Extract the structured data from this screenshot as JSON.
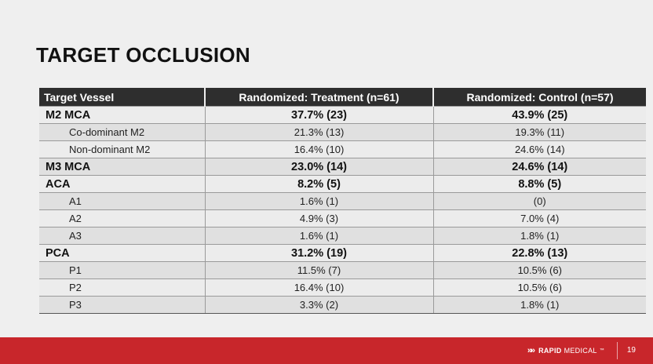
{
  "title": "TARGET OCCLUSION",
  "table": {
    "headers": [
      "Target Vessel",
      "Randomized: Treatment (n=61)",
      "Randomized: Control (n=57)"
    ],
    "rows": [
      {
        "level": "major",
        "vessel": "M2 MCA",
        "treatment": "37.7% (23)",
        "control": "43.9% (25)"
      },
      {
        "level": "sub",
        "vessel": "Co-dominant M2",
        "treatment": "21.3% (13)",
        "control": "19.3% (11)"
      },
      {
        "level": "sub",
        "vessel": "Non-dominant M2",
        "treatment": "16.4% (10)",
        "control": "24.6% (14)"
      },
      {
        "level": "major",
        "vessel": "M3 MCA",
        "treatment": "23.0% (14)",
        "control": "24.6% (14)"
      },
      {
        "level": "major",
        "vessel": "ACA",
        "treatment": "8.2% (5)",
        "control": "8.8% (5)"
      },
      {
        "level": "sub",
        "vessel": "A1",
        "treatment": "1.6% (1)",
        "control": "(0)"
      },
      {
        "level": "sub",
        "vessel": "A2",
        "treatment": "4.9% (3)",
        "control": "7.0% (4)"
      },
      {
        "level": "sub",
        "vessel": "A3",
        "treatment": "1.6% (1)",
        "control": "1.8% (1)"
      },
      {
        "level": "major",
        "vessel": "PCA",
        "treatment": "31.2% (19)",
        "control": "22.8% (13)"
      },
      {
        "level": "sub",
        "vessel": "P1",
        "treatment": "11.5% (7)",
        "control": "10.5% (6)"
      },
      {
        "level": "sub",
        "vessel": "P2",
        "treatment": "16.4% (10)",
        "control": "10.5% (6)"
      },
      {
        "level": "sub",
        "vessel": "P3",
        "treatment": "3.3% (2)",
        "control": "1.8% (1)"
      }
    ]
  },
  "footer": {
    "logo_chevrons": "»»",
    "logo_bold": "RAPID",
    "logo_light": "MEDICAL",
    "logo_tm": "™",
    "page_number": "19",
    "bar_color": "#c8262b"
  }
}
